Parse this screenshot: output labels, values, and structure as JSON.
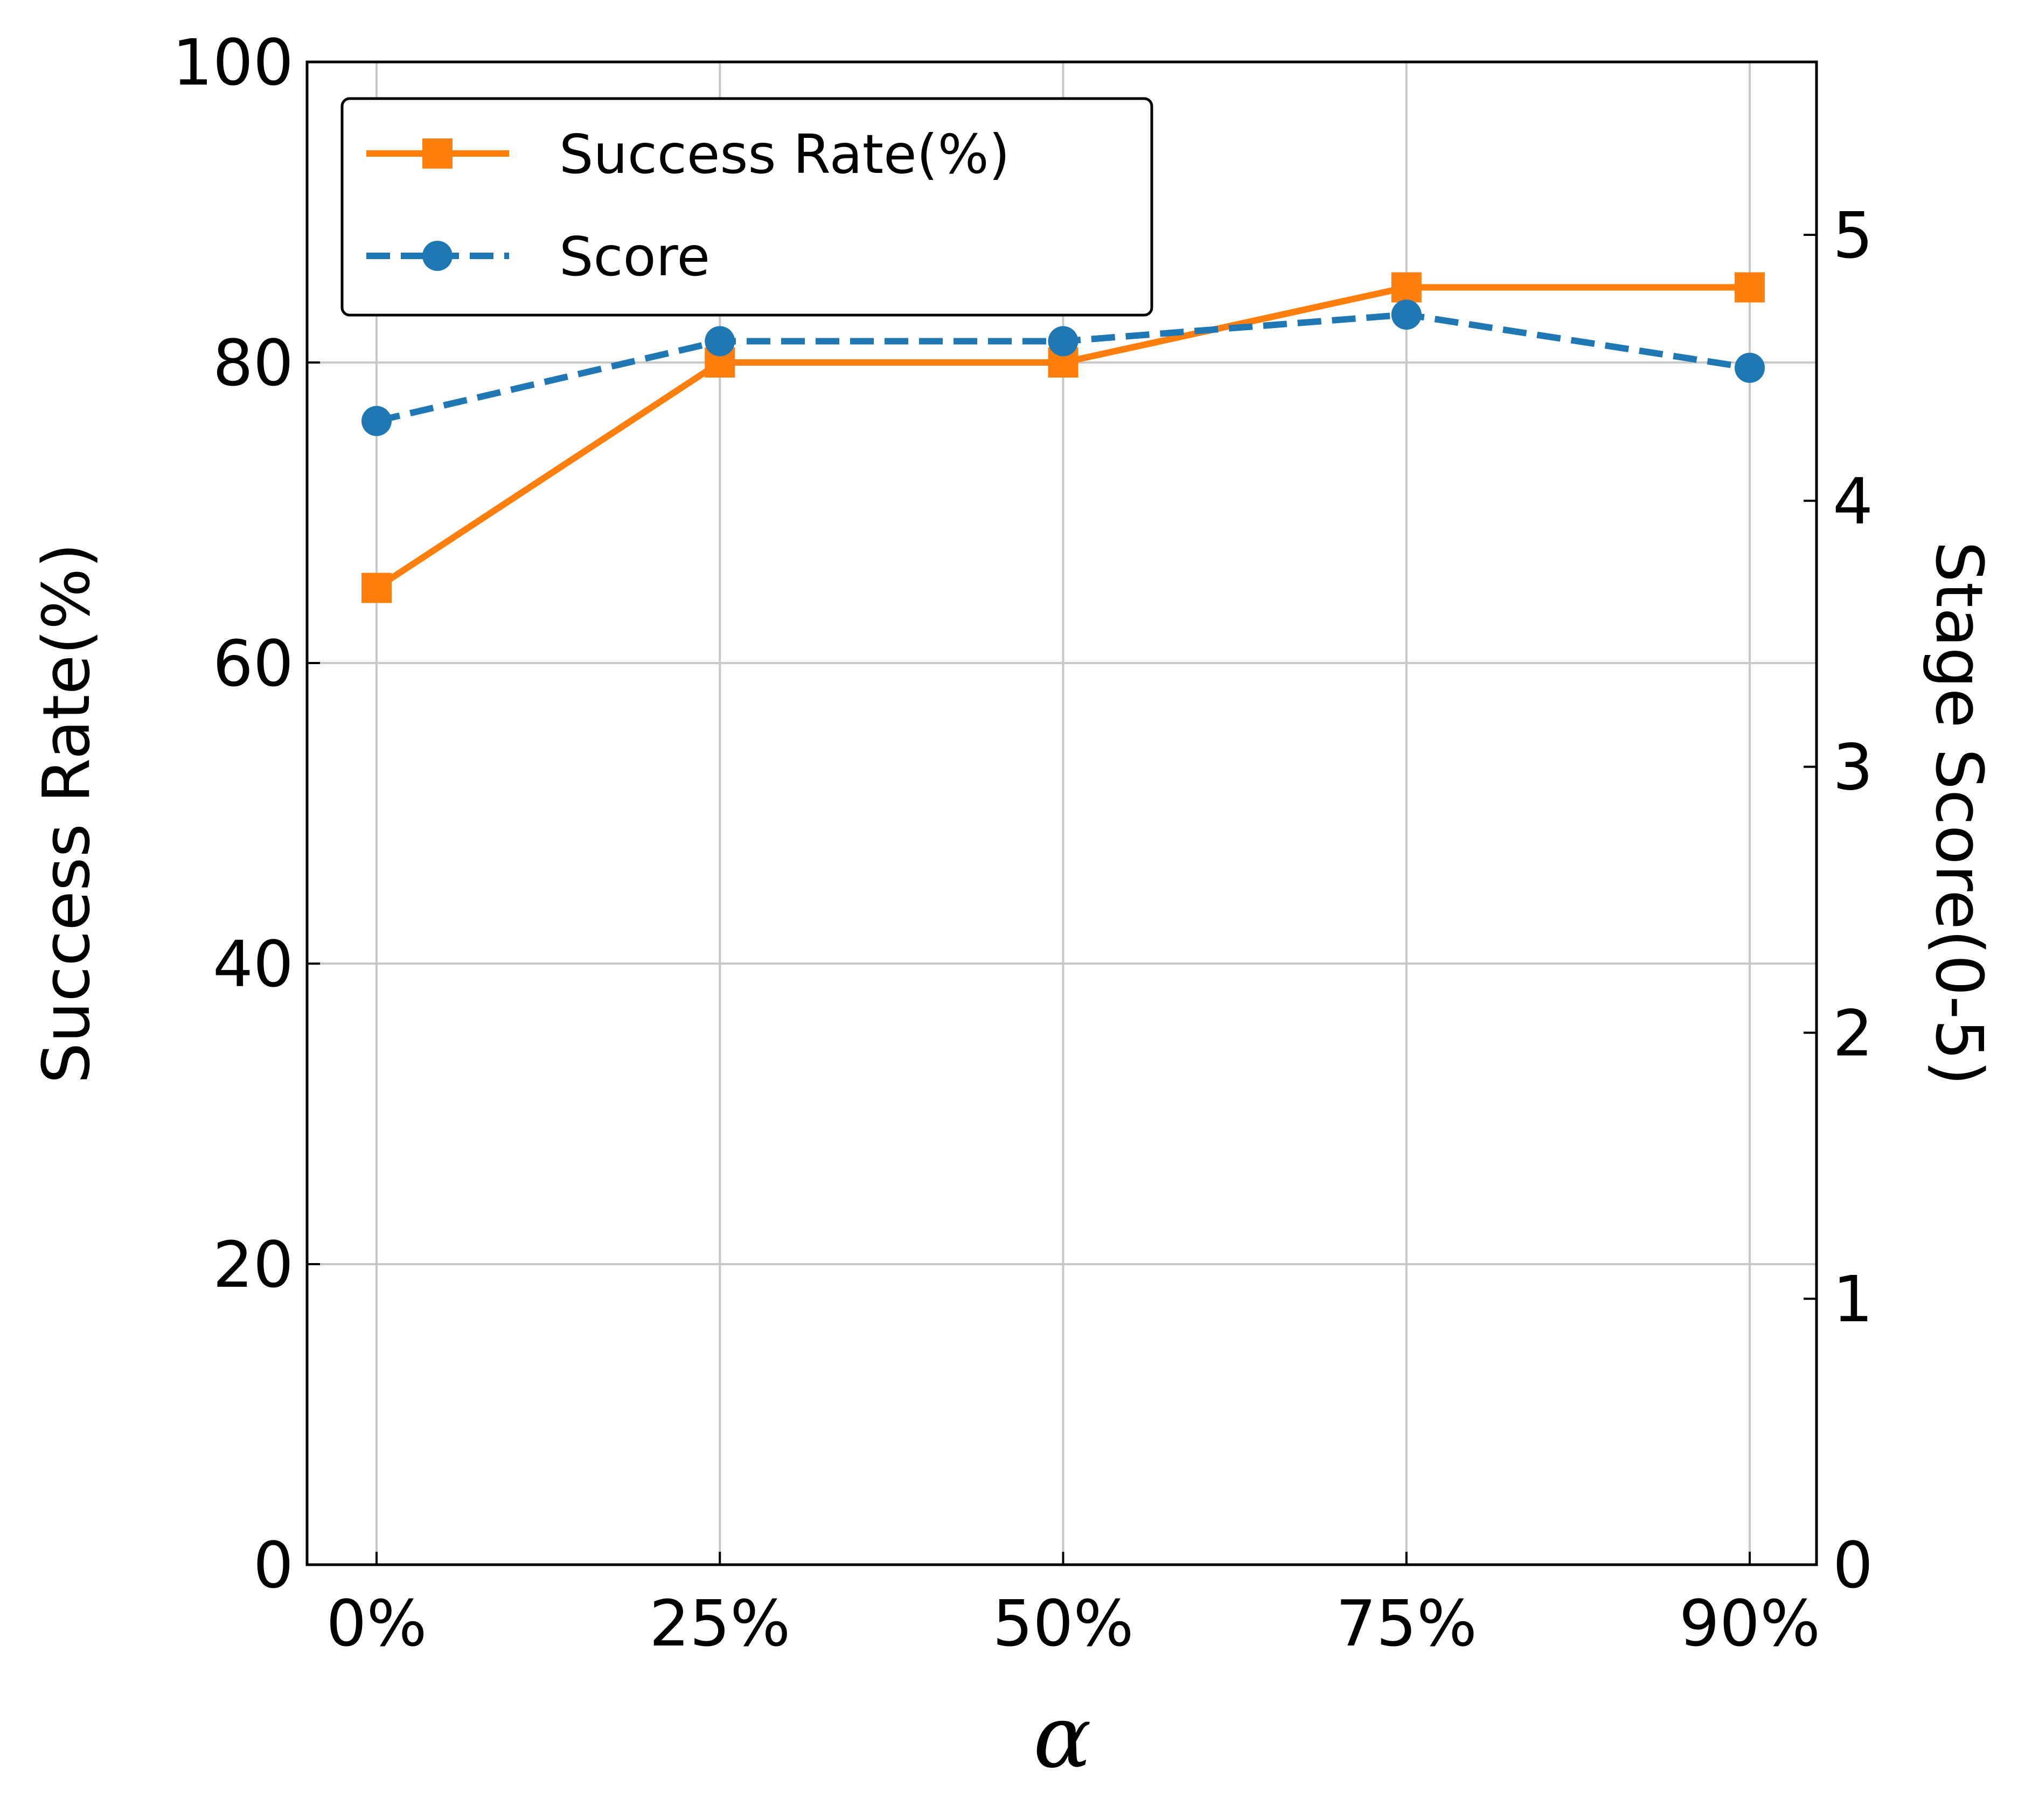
{
  "chart_data": {
    "type": "line",
    "categories": [
      "0%",
      "25%",
      "50%",
      "75%",
      "90%"
    ],
    "xlabel": "α",
    "ylabel": "Success Rate(%)",
    "y2label": "Stage Score(0-5)",
    "ylim": [
      0,
      100
    ],
    "y2lim": [
      0,
      5.65
    ],
    "yticks": [
      "0",
      "20",
      "40",
      "60",
      "80",
      "100"
    ],
    "y2ticks": [
      "0",
      "1",
      "2",
      "3",
      "4",
      "5"
    ],
    "grid": true,
    "legend": "upper-left",
    "series": [
      {
        "name": "Success Rate(%)",
        "axis": "left",
        "values": [
          65,
          80,
          80,
          85,
          85
        ],
        "color": "#ff7f0e",
        "line_style": "solid",
        "marker": "square"
      },
      {
        "name": "Score",
        "axis": "right",
        "values": [
          4.3,
          4.6,
          4.6,
          4.7,
          4.5
        ],
        "color": "#1f77b4",
        "line_style": "dashed",
        "marker": "circle"
      }
    ]
  }
}
